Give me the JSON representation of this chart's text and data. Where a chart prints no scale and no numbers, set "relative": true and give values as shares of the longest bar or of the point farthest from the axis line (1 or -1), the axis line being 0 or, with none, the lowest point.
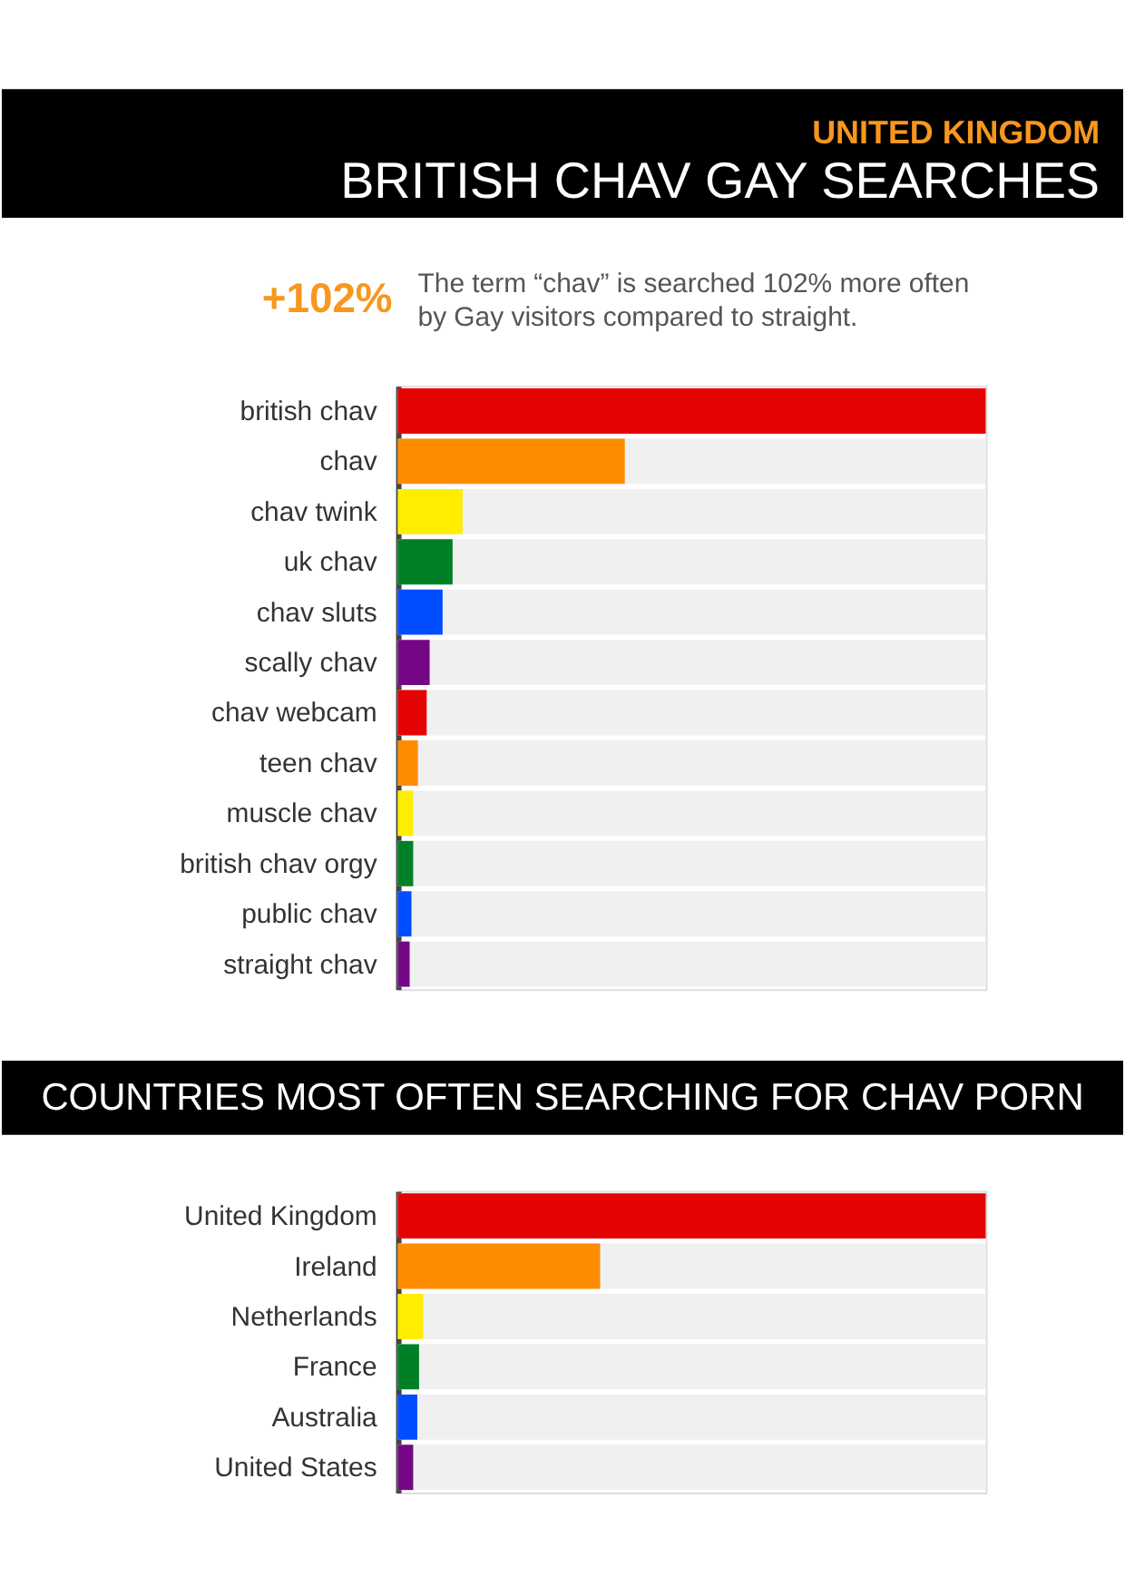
{
  "chart_data": [
    {
      "type": "bar",
      "orientation": "horizontal",
      "relative": true,
      "subtitle": "UNITED KINGDOM",
      "title": "BRITISH CHAV GAY SEARCHES",
      "annotations": [
        "+102%",
        "The term “chav” is searched 102% more often by Gay visitors compared to straight."
      ],
      "categories": [
        "british chav",
        "chav",
        "chav twink",
        "uk chav",
        "chav sluts",
        "scally chav",
        "chav webcam",
        "teen chav",
        "muscle chav",
        "british chav orgy",
        "public chav",
        "straight chav"
      ],
      "values": [
        1,
        0.386,
        0.11,
        0.093,
        0.076,
        0.054,
        0.049,
        0.034,
        0.026,
        0.026,
        0.023,
        0.02
      ],
      "colors": [
        "#e40303",
        "#ff8c00",
        "#ffed00",
        "#008026",
        "#004dff",
        "#750787",
        "#e40303",
        "#ff8c00",
        "#ffed00",
        "#008026",
        "#004dff",
        "#750787"
      ]
    },
    {
      "type": "bar",
      "orientation": "horizontal",
      "relative": true,
      "title": "COUNTRIES MOST OFTEN SEARCHING FOR CHAV PORN",
      "categories": [
        "United Kingdom",
        "Ireland",
        "Netherlands",
        "France",
        "Australia",
        "United States"
      ],
      "values": [
        1,
        0.344,
        0.043,
        0.036,
        0.033,
        0.026
      ],
      "colors": [
        "#e40303",
        "#ff8c00",
        "#ffed00",
        "#008026",
        "#004dff",
        "#750787"
      ]
    }
  ]
}
